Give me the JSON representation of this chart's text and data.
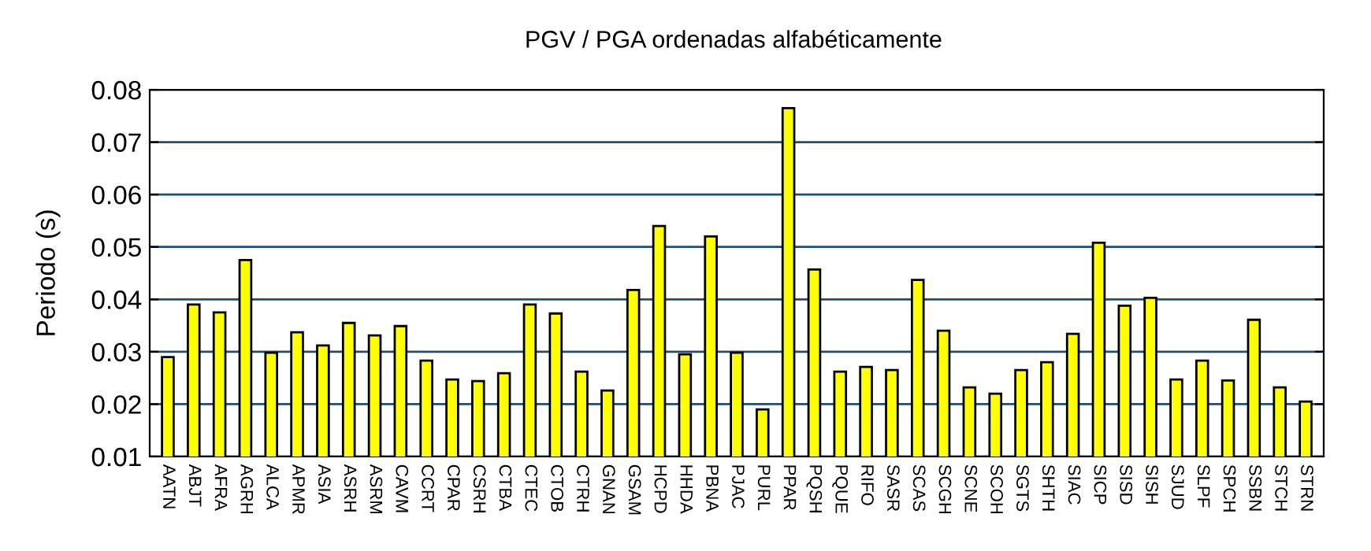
{
  "chart_data": {
    "type": "bar",
    "title": "PGV / PGA ordenadas alfabéticamente",
    "ylabel": "Periodo (s)",
    "categories": [
      "AATN",
      "ABJT",
      "AFRA",
      "AGRH",
      "ALCA",
      "APMR",
      "ASIA",
      "ASRH",
      "ASRM",
      "CAVM",
      "CCRT",
      "CPAR",
      "CSRH",
      "CTBA",
      "CTEC",
      "CTOB",
      "CTRH",
      "GNAN",
      "GSAM",
      "HCPD",
      "HHDA",
      "PBNA",
      "PJAC",
      "PURL",
      "PPAR",
      "PQSH",
      "PQUE",
      "RIFO",
      "SASR",
      "SCAS",
      "SCGH",
      "SCNE",
      "SCOH",
      "SGTS",
      "SHTH",
      "SIAC",
      "SICP",
      "SISD",
      "SISH",
      "SJUD",
      "SLPF",
      "SPCH",
      "SSBN",
      "STCH",
      "STRN"
    ],
    "values": [
      0.029,
      0.039,
      0.0375,
      0.0475,
      0.0298,
      0.0337,
      0.0312,
      0.0355,
      0.0331,
      0.0349,
      0.0283,
      0.0247,
      0.0244,
      0.0259,
      0.039,
      0.0373,
      0.0262,
      0.0226,
      0.0418,
      0.054,
      0.0295,
      0.052,
      0.0298,
      0.019,
      0.0765,
      0.0457,
      0.0262,
      0.0271,
      0.0265,
      0.0437,
      0.034,
      0.0232,
      0.022,
      0.0265,
      0.028,
      0.0334,
      0.0508,
      0.0388,
      0.0403,
      0.0247,
      0.0283,
      0.0245,
      0.0361,
      0.0232,
      0.0205
    ],
    "color": "#ffff00",
    "ylim": [
      0.01,
      0.08
    ],
    "yticks": [
      {
        "value": 0.01,
        "label": "0.01"
      },
      {
        "value": 0.02,
        "label": "0.02"
      },
      {
        "value": 0.03,
        "label": "0.03"
      },
      {
        "value": 0.04,
        "label": "0.04"
      },
      {
        "value": 0.05,
        "label": "0.05"
      },
      {
        "value": 0.06,
        "label": "0.06"
      },
      {
        "value": 0.07,
        "label": "0.07"
      },
      {
        "value": 0.08,
        "label": "0.08"
      }
    ],
    "grid": "y",
    "legend": false
  }
}
